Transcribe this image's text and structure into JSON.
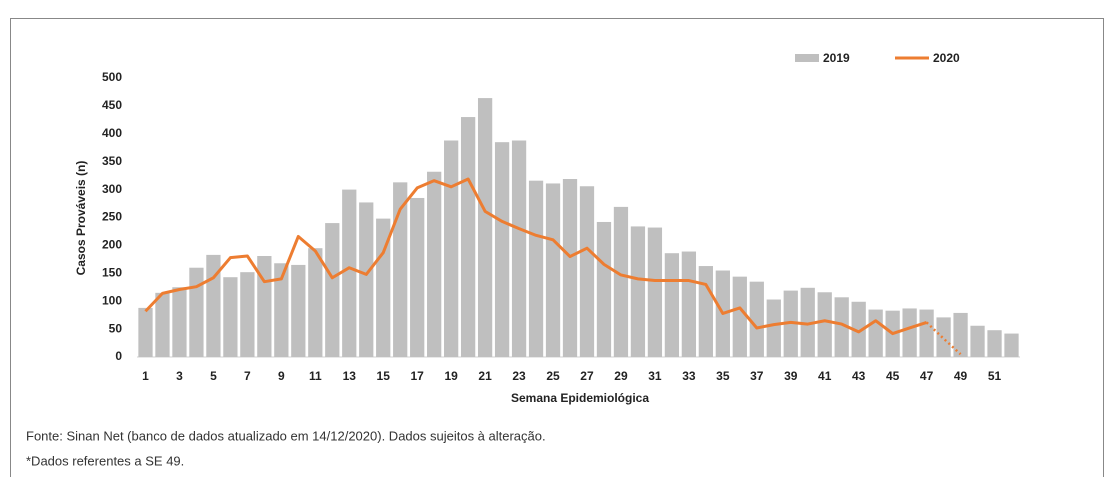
{
  "chart_data": {
    "type": "bar_line",
    "xlabel": "Semana Epidemiológica",
    "ylabel": "Casos Prováveis (n)",
    "categories": [
      1,
      null,
      3,
      null,
      5,
      null,
      7,
      null,
      9,
      null,
      11,
      null,
      13,
      null,
      15,
      null,
      17,
      null,
      19,
      null,
      21,
      null,
      23,
      null,
      25,
      null,
      27,
      null,
      29,
      null,
      31,
      null,
      33,
      null,
      35,
      null,
      37,
      null,
      39,
      null,
      41,
      null,
      43,
      null,
      45,
      null,
      47,
      null,
      49,
      null,
      51,
      null
    ],
    "ylim": [
      0,
      500
    ],
    "yticks": [
      0,
      50,
      100,
      150,
      200,
      250,
      300,
      350,
      400,
      450,
      500
    ],
    "series": [
      {
        "name": "2019",
        "kind": "bar",
        "color": "#bfbfbf",
        "values": [
          88,
          115,
          125,
          160,
          183,
          143,
          152,
          181,
          168,
          165,
          195,
          240,
          300,
          277,
          248,
          313,
          285,
          332,
          388,
          430,
          464,
          385,
          388,
          316,
          311,
          319,
          306,
          242,
          269,
          234,
          232,
          186,
          189,
          163,
          155,
          144,
          135,
          103,
          119,
          124,
          116,
          107,
          99,
          85,
          83,
          87,
          85,
          71,
          79,
          56,
          48,
          42
        ]
      },
      {
        "name": "2020",
        "kind": "line",
        "color": "#ed7d31",
        "values": [
          82,
          114,
          121,
          126,
          142,
          178,
          181,
          135,
          140,
          216,
          190,
          142,
          160,
          148,
          187,
          265,
          303,
          316,
          305,
          319,
          261,
          243,
          230,
          218,
          210,
          180,
          195,
          166,
          147,
          140,
          137,
          137,
          137,
          130,
          78,
          88,
          52,
          58,
          62,
          59,
          65,
          59,
          45,
          65,
          42,
          52,
          62,
          null,
          null,
          null,
          null,
          null
        ],
        "dashed_values": [
          null,
          null,
          null,
          null,
          null,
          null,
          null,
          null,
          null,
          null,
          null,
          null,
          null,
          null,
          null,
          null,
          null,
          null,
          null,
          null,
          null,
          null,
          null,
          null,
          null,
          null,
          null,
          null,
          null,
          null,
          null,
          null,
          null,
          null,
          null,
          null,
          null,
          null,
          null,
          null,
          null,
          null,
          null,
          null,
          null,
          null,
          62,
          33,
          5,
          null,
          null,
          null
        ]
      }
    ],
    "legend": "top-right"
  },
  "footnotes": [
    "Fonte: Sinan Net (banco de dados atualizado em 14/12/2020). Dados sujeitos à alteração.",
    "*Dados referentes a SE 49."
  ]
}
